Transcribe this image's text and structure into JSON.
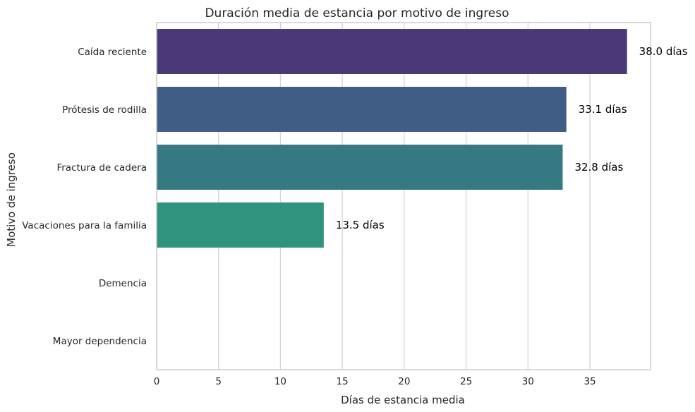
{
  "chart_data": {
    "type": "bar",
    "orientation": "horizontal",
    "title": "Duración media de estancia por motivo de ingreso",
    "xlabel": "Días de estancia media",
    "ylabel": "Motivo de ingreso",
    "categories": [
      "Caída reciente",
      "Prótesis de rodilla",
      "Fractura de cadera",
      "Vacaciones para la familia",
      "Demencia",
      "Mayor dependencia"
    ],
    "values": [
      38.0,
      33.1,
      32.8,
      13.5,
      null,
      null
    ],
    "data_labels": [
      "38.0 días",
      "33.1 días",
      "32.8 días",
      "13.5 días",
      "",
      ""
    ],
    "colors": [
      "#4b3879",
      "#405e85",
      "#357a82",
      "#30937d",
      "#ffffff",
      "#ffffff"
    ],
    "xlim": [
      0,
      39.9
    ],
    "xticks": [
      0,
      5,
      10,
      15,
      20,
      25,
      30,
      35
    ],
    "xtick_labels": [
      "0",
      "5",
      "10",
      "15",
      "20",
      "25",
      "30",
      "35"
    ],
    "grid": "vertical",
    "gridColor": "#d3d3d3",
    "frameColor": "#cccccc"
  }
}
